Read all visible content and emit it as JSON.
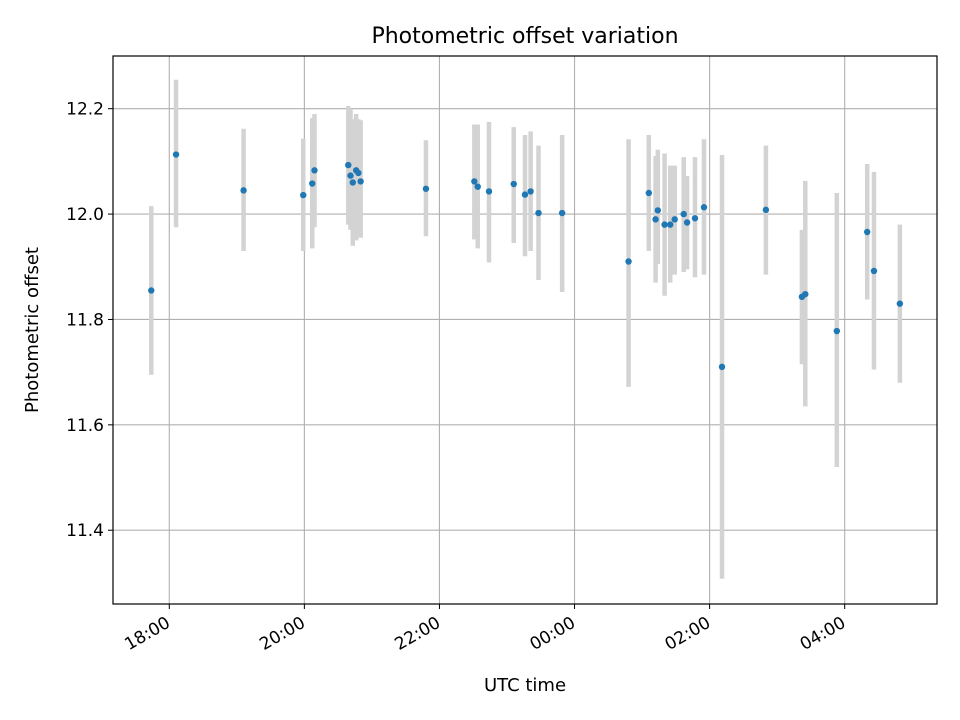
{
  "chart_data": {
    "type": "scatter",
    "title": "Photometric offset variation",
    "xlabel": "UTC time",
    "ylabel": "Photometric offset",
    "x_tick_labels": [
      "18:00",
      "20:00",
      "22:00",
      "00:00",
      "02:00",
      "04:00"
    ],
    "x_ticks": [
      "2000-01-01T18:00",
      "2000-01-01T20:00",
      "2000-01-01T22:00",
      "2000-01-02T00:00",
      "2000-01-02T02:00",
      "2000-01-02T04:00"
    ],
    "y_ticks": [
      11.4,
      11.6,
      11.8,
      12.0,
      12.2
    ],
    "y_tick_labels": [
      "11.4",
      "11.6",
      "11.8",
      "12.0",
      "12.2"
    ],
    "xlim": [
      "2000-01-01T17:10",
      "2000-01-02T05:22"
    ],
    "ylim": [
      11.26,
      12.3
    ],
    "grid": true,
    "colors": {
      "point": "#1f77b4",
      "errorbar": "#d3d3d3",
      "grid": "#b0b0b0"
    },
    "series": [
      {
        "points": [
          {
            "x": "2000-01-01T17:44",
            "y": 11.855,
            "yerr": [
              11.695,
              12.015
            ]
          },
          {
            "x": "2000-01-01T18:06",
            "y": 12.113,
            "yerr": [
              11.975,
              12.255
            ]
          },
          {
            "x": "2000-01-01T19:06",
            "y": 12.045,
            "yerr": [
              11.93,
              12.162
            ]
          },
          {
            "x": "2000-01-01T19:59",
            "y": 12.036,
            "yerr": [
              11.93,
              12.143
            ]
          },
          {
            "x": "2000-01-01T20:07",
            "y": 12.058,
            "yerr": [
              11.935,
              12.182
            ]
          },
          {
            "x": "2000-01-01T20:09",
            "y": 12.083,
            "yerr": [
              11.975,
              12.19
            ]
          },
          {
            "x": "2000-01-01T20:39",
            "y": 12.093,
            "yerr": [
              11.98,
              12.205
            ]
          },
          {
            "x": "2000-01-01T20:41",
            "y": 12.073,
            "yerr": [
              11.97,
              12.2
            ]
          },
          {
            "x": "2000-01-01T20:43",
            "y": 12.06,
            "yerr": [
              11.94,
              12.18
            ]
          },
          {
            "x": "2000-01-01T20:46",
            "y": 12.083,
            "yerr": [
              11.95,
              12.19
            ]
          },
          {
            "x": "2000-01-01T20:48",
            "y": 12.078,
            "yerr": [
              11.96,
              12.18
            ]
          },
          {
            "x": "2000-01-01T20:50",
            "y": 12.062,
            "yerr": [
              11.955,
              12.178
            ]
          },
          {
            "x": "2000-01-01T21:48",
            "y": 12.048,
            "yerr": [
              11.958,
              12.14
            ]
          },
          {
            "x": "2000-01-01T22:31",
            "y": 12.062,
            "yerr": [
              11.952,
              12.17
            ]
          },
          {
            "x": "2000-01-01T22:34",
            "y": 12.052,
            "yerr": [
              11.935,
              12.17
            ]
          },
          {
            "x": "2000-01-01T22:44",
            "y": 12.043,
            "yerr": [
              11.908,
              12.175
            ]
          },
          {
            "x": "2000-01-01T23:06",
            "y": 12.057,
            "yerr": [
              11.945,
              12.165
            ]
          },
          {
            "x": "2000-01-01T23:16",
            "y": 12.037,
            "yerr": [
              11.92,
              12.15
            ]
          },
          {
            "x": "2000-01-01T23:21",
            "y": 12.043,
            "yerr": [
              11.93,
              12.157
            ]
          },
          {
            "x": "2000-01-01T23:28",
            "y": 12.002,
            "yerr": [
              11.875,
              12.13
            ]
          },
          {
            "x": "2000-01-01T23:49",
            "y": 12.002,
            "yerr": [
              11.852,
              12.15
            ]
          },
          {
            "x": "2000-01-02T00:48",
            "y": 11.91,
            "yerr": [
              11.672,
              12.142
            ]
          },
          {
            "x": "2000-01-02T01:06",
            "y": 12.04,
            "yerr": [
              11.93,
              12.15
            ]
          },
          {
            "x": "2000-01-02T01:12",
            "y": 11.99,
            "yerr": [
              11.87,
              12.11
            ]
          },
          {
            "x": "2000-01-02T01:14",
            "y": 12.007,
            "yerr": [
              11.905,
              12.122
            ]
          },
          {
            "x": "2000-01-02T01:20",
            "y": 11.98,
            "yerr": [
              11.845,
              12.115
            ]
          },
          {
            "x": "2000-01-02T01:25",
            "y": 11.98,
            "yerr": [
              11.87,
              12.092
            ]
          },
          {
            "x": "2000-01-02T01:29",
            "y": 11.99,
            "yerr": [
              11.885,
              12.092
            ]
          },
          {
            "x": "2000-01-02T01:37",
            "y": 12.0,
            "yerr": [
              11.89,
              12.108
            ]
          },
          {
            "x": "2000-01-02T01:40",
            "y": 11.984,
            "yerr": [
              11.895,
              12.072
            ]
          },
          {
            "x": "2000-01-02T01:47",
            "y": 11.992,
            "yerr": [
              11.88,
              12.108
            ]
          },
          {
            "x": "2000-01-02T01:55",
            "y": 12.013,
            "yerr": [
              11.885,
              12.142
            ]
          },
          {
            "x": "2000-01-02T02:11",
            "y": 11.71,
            "yerr": [
              11.308,
              12.112
            ]
          },
          {
            "x": "2000-01-02T02:50",
            "y": 12.008,
            "yerr": [
              11.885,
              12.13
            ]
          },
          {
            "x": "2000-01-02T03:22",
            "y": 11.843,
            "yerr": [
              11.715,
              11.97
            ]
          },
          {
            "x": "2000-01-02T03:25",
            "y": 11.848,
            "yerr": [
              11.635,
              12.063
            ]
          },
          {
            "x": "2000-01-02T03:53",
            "y": 11.778,
            "yerr": [
              11.52,
              12.04
            ]
          },
          {
            "x": "2000-01-02T04:20",
            "y": 11.966,
            "yerr": [
              11.838,
              12.095
            ]
          },
          {
            "x": "2000-01-02T04:26",
            "y": 11.892,
            "yerr": [
              11.705,
              12.08
            ]
          },
          {
            "x": "2000-01-02T04:49",
            "y": 11.83,
            "yerr": [
              11.68,
              11.98
            ]
          }
        ]
      }
    ]
  }
}
